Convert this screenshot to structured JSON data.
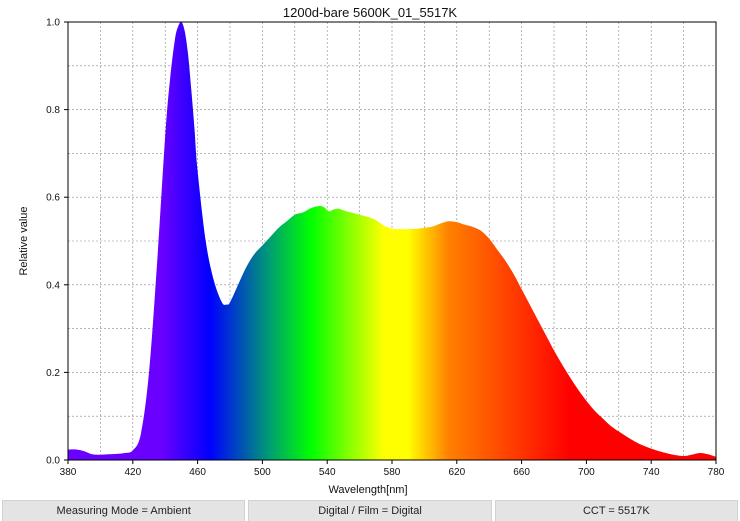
{
  "chart_data": {
    "type": "area",
    "title": "1200d-bare 5600K_01_5517K",
    "xlabel": "Wavelength[nm]",
    "ylabel": "Relative value",
    "xlim": [
      380,
      780
    ],
    "ylim": [
      0,
      1.0
    ],
    "x_ticks": [
      "380",
      "420",
      "460",
      "500",
      "540",
      "580",
      "620",
      "660",
      "700",
      "740",
      "780"
    ],
    "y_ticks": [
      "0.0",
      "0.2",
      "0.4",
      "0.6",
      "0.8",
      "1.0"
    ],
    "grid": true,
    "legend": "none",
    "x": [
      380,
      385,
      390,
      395,
      400,
      405,
      410,
      415,
      420,
      425,
      430,
      435,
      440,
      443,
      446,
      448,
      450,
      452,
      454,
      456,
      458,
      460,
      465,
      470,
      475,
      478,
      480,
      485,
      490,
      495,
      500,
      505,
      510,
      515,
      520,
      525,
      530,
      535,
      538,
      541,
      544,
      547,
      550,
      555,
      560,
      565,
      570,
      575,
      580,
      585,
      590,
      595,
      600,
      605,
      610,
      615,
      620,
      625,
      630,
      635,
      640,
      645,
      650,
      655,
      660,
      665,
      670,
      675,
      680,
      685,
      690,
      695,
      700,
      705,
      710,
      715,
      720,
      725,
      730,
      735,
      740,
      745,
      750,
      755,
      760,
      765,
      770,
      775,
      780
    ],
    "y": [
      0.024,
      0.024,
      0.02,
      0.013,
      0.012,
      0.013,
      0.014,
      0.016,
      0.022,
      0.06,
      0.2,
      0.45,
      0.74,
      0.87,
      0.96,
      0.99,
      1.0,
      0.98,
      0.93,
      0.85,
      0.76,
      0.66,
      0.5,
      0.41,
      0.36,
      0.355,
      0.36,
      0.4,
      0.44,
      0.47,
      0.49,
      0.51,
      0.53,
      0.545,
      0.56,
      0.565,
      0.575,
      0.58,
      0.577,
      0.568,
      0.572,
      0.574,
      0.57,
      0.565,
      0.56,
      0.555,
      0.548,
      0.535,
      0.528,
      0.527,
      0.527,
      0.528,
      0.53,
      0.533,
      0.54,
      0.545,
      0.543,
      0.537,
      0.532,
      0.523,
      0.505,
      0.48,
      0.455,
      0.425,
      0.39,
      0.355,
      0.32,
      0.285,
      0.25,
      0.218,
      0.188,
      0.16,
      0.135,
      0.113,
      0.095,
      0.078,
      0.065,
      0.053,
      0.042,
      0.033,
      0.026,
      0.02,
      0.015,
      0.011,
      0.009,
      0.012,
      0.016,
      0.013,
      0.007
    ]
  },
  "status_bar": {
    "measuring_mode": "Measuring Mode = Ambient",
    "digital_film": "Digital / Film = Digital",
    "cct": "CCT = 5517K"
  },
  "colors": {
    "spectrum_violet": "#6a00ff",
    "spectrum_blue": "#0000ff",
    "spectrum_cyan_green": "#00a070",
    "spectrum_green": "#00ff00",
    "spectrum_yellow": "#ffff00",
    "spectrum_orange": "#ff8000",
    "spectrum_red": "#ff0000",
    "grid": "#888888"
  }
}
